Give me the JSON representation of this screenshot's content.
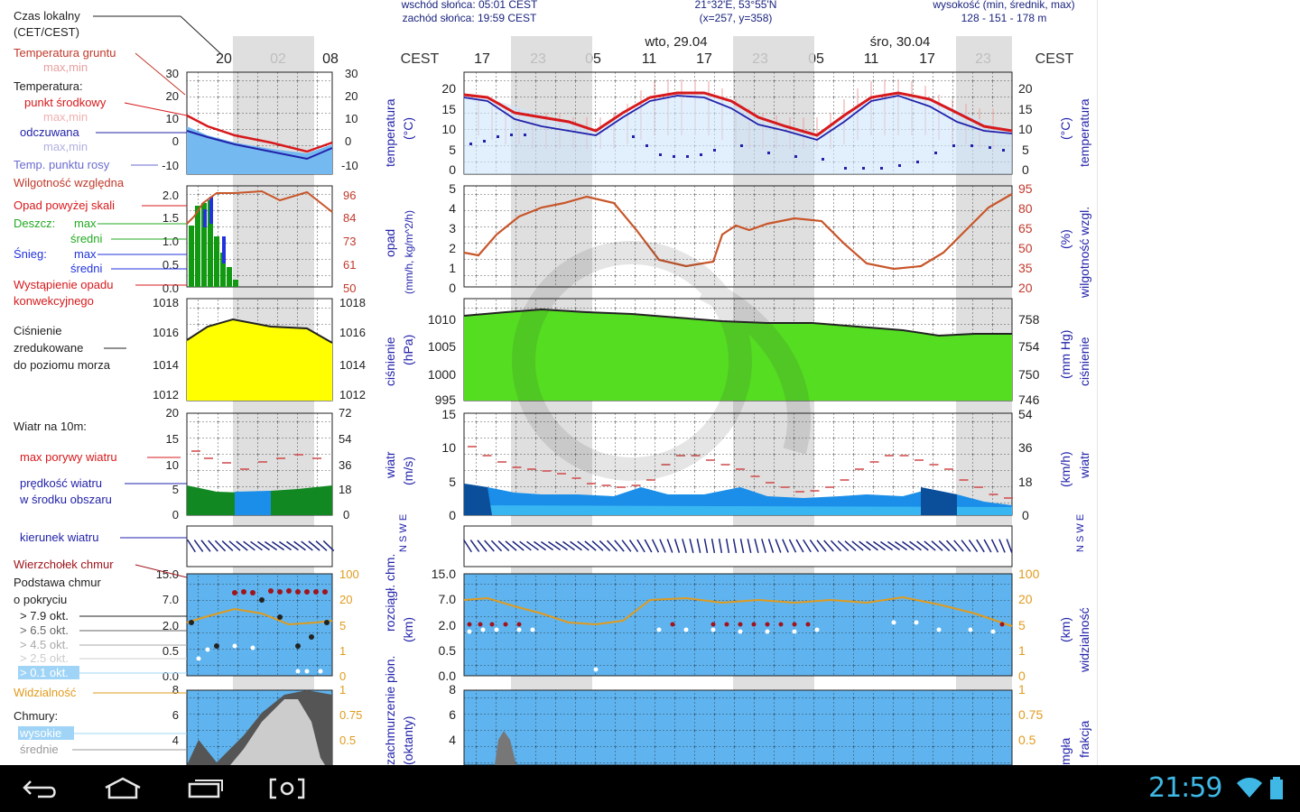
{
  "header": {
    "sun": [
      "wschód słońca: 05:01 CEST",
      "zachód słońca: 19:59 CEST"
    ],
    "coords": [
      "21°32'E, 53°55'N",
      "(x=257, y=358)"
    ],
    "height": [
      "wysokość (min, średnik, max)",
      "128 - 151 - 178 m"
    ],
    "tz_left": "CEST",
    "tz_right": "CEST",
    "hours": [
      "17",
      "23",
      "05",
      "11",
      "17",
      "23",
      "05",
      "11",
      "17",
      "23"
    ],
    "hours_left": [
      "20",
      "02",
      "08"
    ],
    "days": [
      "wto, 29.04",
      "śro, 30.04"
    ]
  },
  "legend": {
    "local_time": [
      "Czas lokalny",
      "(CET/CEST)"
    ],
    "ground_temp": [
      "Temperatura gruntu",
      "max,min"
    ],
    "temperature": "Temperatura:",
    "mid_point": "punkt środkowy",
    "maxmin1": "max,min",
    "felt": "odczuwana",
    "maxmin2": "max,min",
    "dew": "Temp. punktu rosy",
    "humidity": "Wilgotność względna",
    "precip_over": "Opad powyżej skali",
    "rain": "Deszcz:",
    "rain_max": "max",
    "rain_mean": "średni",
    "snow": "Śnieg:",
    "snow_max": "max",
    "snow_mean": "średni",
    "convective": [
      "Wystąpienie opadu",
      "konwekcyjnego"
    ],
    "pressure": [
      "Ciśnienie",
      "zredukowane",
      "do poziomu morza"
    ],
    "wind10": "Wiatr na 10m:",
    "gusts": "max porywy wiatru",
    "wind_speed": [
      "prędkość wiatru",
      "w środku obszaru"
    ],
    "wind_dir": "kierunek wiatru",
    "cloud_top": "Wierzchołek chmur",
    "cloud_base": [
      "Podstawa chmur",
      "o pokryciu"
    ],
    "okt": [
      "> 7.9 okt.",
      "> 6.5 okt.",
      "> 4.5 okt.",
      "> 2.5 okt.",
      "> 0.1 okt."
    ],
    "visibility": "Widzialność",
    "clouds": "Chmury:",
    "high": "wysokie",
    "mid": "średnie"
  },
  "panels": {
    "temp_left_ticks": [
      "30",
      "20",
      "10",
      "0",
      "-10"
    ],
    "temp_left_ticks2": [
      "30",
      "20",
      "10",
      "0",
      "-10"
    ],
    "temp_ticks": [
      "20",
      "15",
      "10",
      "5",
      "0"
    ],
    "temp_label": [
      "temperatura",
      "(°C)"
    ],
    "precip_left_ticks": [
      "2.0",
      "1.5",
      "1.0",
      "0.5",
      "0.0"
    ],
    "humid_left_ticks": [
      "96",
      "84",
      "73",
      "61",
      "50"
    ],
    "precip_ticks": [
      "5",
      "4",
      "3",
      "2",
      "1",
      "0"
    ],
    "precip_label": [
      "opad",
      "(mm/h, kg/m^2/h)"
    ],
    "humid_ticks": [
      "95",
      "80",
      "65",
      "50",
      "35",
      "20"
    ],
    "humid_label": [
      "wilgotność wzgl.",
      "(%)"
    ],
    "press_left_ticks": [
      "1018",
      "1016",
      "1014",
      "1012"
    ],
    "press_left_ticks2": [
      "1018",
      "1016",
      "1014",
      "1012"
    ],
    "press_ticks": [
      "1010",
      "1005",
      "1000",
      "995"
    ],
    "press_label": [
      "ciśnienie",
      "(hPa)"
    ],
    "pressmm_ticks": [
      "758",
      "754",
      "750",
      "746"
    ],
    "pressmm_label": [
      "ciśnienie",
      "(mm Hg)"
    ],
    "wind_left_ticks": [
      "20",
      "15",
      "10",
      "5",
      "0"
    ],
    "windkmh_left_ticks": [
      "72",
      "54",
      "36",
      "18",
      "0"
    ],
    "wind_ticks": [
      "15",
      "10",
      "5",
      "0"
    ],
    "wind_label": [
      "wiatr",
      "(m/s)"
    ],
    "windkmh_ticks": [
      "54",
      "36",
      "18",
      "0"
    ],
    "windkmh_label": [
      "wiatr",
      "(km/h)"
    ],
    "compass": "N S W E",
    "cloud_left_ticks": [
      "15.0",
      "7.0",
      "2.0",
      "0.5",
      "0.0"
    ],
    "vis_left_ticks": [
      "100",
      "20",
      "5",
      "1",
      "0"
    ],
    "cloud_label": [
      "rozciągł. chm.",
      "(km)"
    ],
    "vis_label": [
      "widzialność",
      "(km)"
    ],
    "cover_left_ticks": [
      "8",
      "6",
      "4"
    ],
    "cover_label": [
      "zachmurzenie pion.",
      "(oktanty)"
    ],
    "frac_ticks": [
      "1",
      "0.75",
      "0.5"
    ],
    "frac_label": [
      "frakcja",
      "mgła"
    ]
  },
  "statusbar": {
    "time": "21:59",
    "wifi": "wifi-icon",
    "battery": "battery-icon"
  },
  "nav": {
    "back": "back-icon",
    "home": "home-icon",
    "recent": "recent-apps-icon",
    "screenshot": "screenshot-icon"
  },
  "colors": {
    "temp_red": "#d7191c",
    "felt_blue": "#2222aa",
    "humid_orange": "#c8562a",
    "pressure_yellow": "#ffff00",
    "pressure_green": "#55dd22",
    "wind_blue": "#1a8ee8",
    "wind_green": "#118822",
    "sky_blue": "#5fb4ef",
    "vis_orange": "#e09b1e",
    "clock_cyan": "#3fb8e6"
  }
}
